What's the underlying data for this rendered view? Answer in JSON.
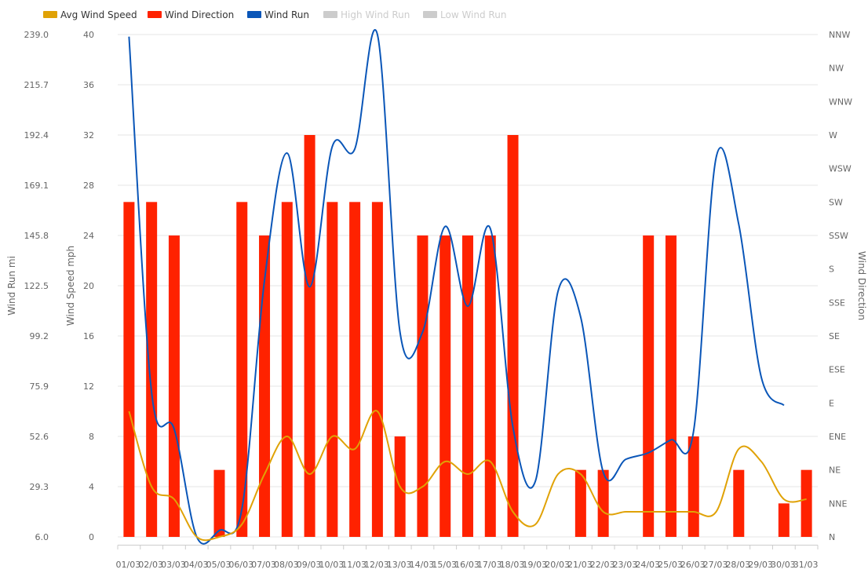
{
  "chart_data": {
    "type": "bar",
    "legend": {
      "placement": "top-left",
      "items": [
        {
          "label": "Avg Wind Speed",
          "color": "#e0a206",
          "enabled": true
        },
        {
          "label": "Wind Direction",
          "color": "#ff2200",
          "enabled": true
        },
        {
          "label": "Wind Run",
          "color": "#0a56b8",
          "enabled": true
        },
        {
          "label": "High Wind Run",
          "color": "#cccccc",
          "enabled": false
        },
        {
          "label": "Low Wind Run",
          "color": "#cccccc",
          "enabled": false
        }
      ]
    },
    "categories": [
      "01/03",
      "02/03",
      "03/03",
      "04/03",
      "05/03",
      "06/03",
      "07/03",
      "08/03",
      "09/03",
      "10/03",
      "11/03",
      "12/03",
      "13/03",
      "14/03",
      "15/03",
      "16/03",
      "17/03",
      "18/03",
      "19/03",
      "20/03",
      "21/03",
      "22/03",
      "23/03",
      "24/03",
      "25/03",
      "26/03",
      "27/03",
      "28/03",
      "29/03",
      "30/03",
      "31/03"
    ],
    "axes": {
      "wind_run": {
        "label": "Wind Run mi",
        "range": [
          6.0,
          239.0
        ],
        "ticks": [
          "6.0",
          "29.3",
          "52.6",
          "75.9",
          "99.2",
          "122.5",
          "145.8",
          "169.1",
          "192.4",
          "215.7",
          "239.0"
        ]
      },
      "wind_speed": {
        "label": "Wind Speed mph",
        "range": [
          0,
          40
        ],
        "ticks": [
          "0",
          "4",
          "8",
          "12",
          "16",
          "20",
          "24",
          "28",
          "32",
          "36",
          "40"
        ]
      },
      "wind_direction": {
        "label": "Wind Direction",
        "ticks": [
          "N",
          "NNE",
          "NE",
          "ENE",
          "E",
          "ESE",
          "SE",
          "SSE",
          "S",
          "SSW",
          "SW",
          "WSW",
          "W",
          "WNW",
          "NW",
          "NNW"
        ]
      }
    },
    "grid": true,
    "series": [
      {
        "name": "Wind Direction",
        "type": "bar",
        "axis": "wind_direction",
        "color": "#ff2200",
        "values": [
          "SW",
          "SW",
          "SSW",
          null,
          "NE",
          "SW",
          "SSW",
          "SW",
          "W",
          "SW",
          "SW",
          "SW",
          "ENE",
          "SSW",
          "SSW",
          "SSW",
          "SSW",
          "W",
          null,
          null,
          "NE",
          "NE",
          null,
          "SSW",
          "SSW",
          "ENE",
          null,
          "NE",
          null,
          "NNE",
          "NE"
        ]
      },
      {
        "name": "Wind Run",
        "type": "line",
        "axis": "wind_run",
        "color": "#0a56b8",
        "values": [
          238,
          73,
          56,
          6,
          9,
          19,
          125,
          184,
          122,
          187,
          186,
          239,
          101,
          101,
          150,
          113,
          149,
          57,
          32,
          120,
          108,
          36,
          42,
          45,
          51,
          55,
          182,
          151,
          80,
          67,
          null
        ]
      },
      {
        "name": "Avg Wind Speed",
        "type": "line",
        "axis": "wind_speed",
        "color": "#e0a206",
        "values": [
          10,
          4,
          3,
          0,
          0,
          1,
          5,
          8,
          5,
          8,
          7,
          10,
          4,
          4,
          6,
          5,
          6,
          2,
          1,
          5,
          5,
          2,
          2,
          2,
          2,
          2,
          2,
          7,
          6,
          3,
          3
        ]
      }
    ]
  }
}
